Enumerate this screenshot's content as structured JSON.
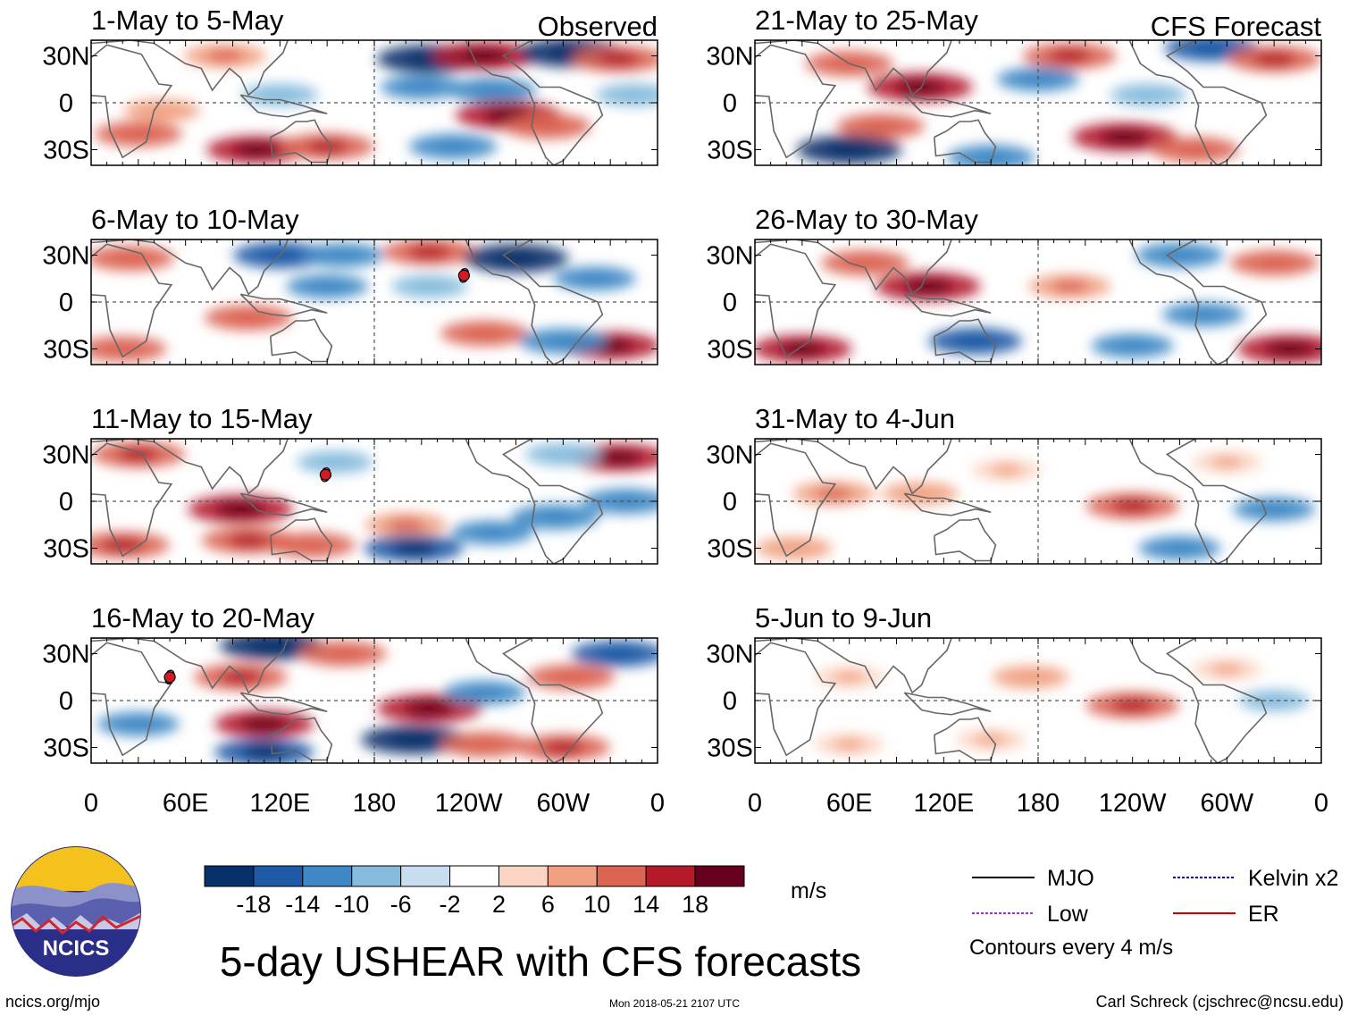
{
  "chart_data": {
    "type": "heatmap",
    "title": "5-day USHEAR with CFS forecasts",
    "units": "m/s",
    "colorbar": {
      "ticks": [
        "-18",
        "-14",
        "-10",
        "-6",
        "-2",
        "2",
        "6",
        "10",
        "14",
        "18"
      ],
      "colors": [
        "#08306b",
        "#1f5aa6",
        "#3f88c5",
        "#86bbdd",
        "#c8def0",
        "#ffffff",
        "#fbd5c3",
        "#f1a182",
        "#db6453",
        "#b31b2b",
        "#67001f"
      ]
    },
    "lat_ticks": [
      "30N",
      "0",
      "30S"
    ],
    "lon_ticks": [
      "0",
      "60E",
      "120E",
      "180",
      "120W",
      "60W",
      "0"
    ],
    "column_tags": {
      "observed": "Observed",
      "forecast": "CFS Forecast"
    },
    "panels": [
      {
        "title": "1-May to 5-May",
        "column": "observed",
        "features": [
          {
            "lon": 30,
            "lat": -20,
            "value": 12
          },
          {
            "lon": 45,
            "lat": -5,
            "value": 8
          },
          {
            "lon": 85,
            "lat": 30,
            "value": 10
          },
          {
            "lon": 105,
            "lat": -30,
            "value": 16
          },
          {
            "lon": 150,
            "lat": -28,
            "value": 14
          },
          {
            "lon": 215,
            "lat": 28,
            "value": -18
          },
          {
            "lon": 250,
            "lat": 30,
            "value": 18
          },
          {
            "lon": 210,
            "lat": 10,
            "value": -10
          },
          {
            "lon": 255,
            "lat": 8,
            "value": -12
          },
          {
            "lon": 265,
            "lat": -8,
            "value": 18
          },
          {
            "lon": 290,
            "lat": -15,
            "value": 12
          },
          {
            "lon": 305,
            "lat": 32,
            "value": -18
          },
          {
            "lon": 335,
            "lat": 28,
            "value": 14
          },
          {
            "lon": 345,
            "lat": 5,
            "value": -8
          },
          {
            "lon": 230,
            "lat": -28,
            "value": -12
          },
          {
            "lon": 120,
            "lat": 5,
            "value": -8
          }
        ]
      },
      {
        "title": "6-May to 10-May",
        "column": "observed",
        "features": [
          {
            "lon": 25,
            "lat": 28,
            "value": 12
          },
          {
            "lon": 100,
            "lat": -10,
            "value": 12
          },
          {
            "lon": 120,
            "lat": 30,
            "value": -14
          },
          {
            "lon": 160,
            "lat": 30,
            "value": -10
          },
          {
            "lon": 215,
            "lat": 32,
            "value": 14
          },
          {
            "lon": 270,
            "lat": 28,
            "value": -18
          },
          {
            "lon": 215,
            "lat": 10,
            "value": -8
          },
          {
            "lon": 250,
            "lat": -20,
            "value": 12
          },
          {
            "lon": 330,
            "lat": -28,
            "value": 16
          },
          {
            "lon": 300,
            "lat": -25,
            "value": -12
          },
          {
            "lon": 20,
            "lat": -30,
            "value": 12
          },
          {
            "lon": 320,
            "lat": 15,
            "value": -10
          },
          {
            "lon": 150,
            "lat": 10,
            "value": -10
          }
        ]
      },
      {
        "title": "11-May to 15-May",
        "column": "observed",
        "features": [
          {
            "lon": 95,
            "lat": -5,
            "value": 18
          },
          {
            "lon": 100,
            "lat": -25,
            "value": 14
          },
          {
            "lon": 140,
            "lat": -28,
            "value": 12
          },
          {
            "lon": 20,
            "lat": -28,
            "value": 14
          },
          {
            "lon": 30,
            "lat": 30,
            "value": 14
          },
          {
            "lon": 155,
            "lat": 25,
            "value": -8
          },
          {
            "lon": 200,
            "lat": -15,
            "value": 10
          },
          {
            "lon": 205,
            "lat": -30,
            "value": -16
          },
          {
            "lon": 255,
            "lat": -20,
            "value": -10
          },
          {
            "lon": 295,
            "lat": -10,
            "value": -12
          },
          {
            "lon": 335,
            "lat": 28,
            "value": 16
          },
          {
            "lon": 340,
            "lat": 0,
            "value": -12
          },
          {
            "lon": 300,
            "lat": 30,
            "value": -8
          }
        ]
      },
      {
        "title": "16-May to 20-May",
        "column": "observed",
        "features": [
          {
            "lon": 95,
            "lat": 15,
            "value": 14
          },
          {
            "lon": 110,
            "lat": -15,
            "value": 16
          },
          {
            "lon": 110,
            "lat": -33,
            "value": -16
          },
          {
            "lon": 115,
            "lat": 35,
            "value": -18
          },
          {
            "lon": 215,
            "lat": -5,
            "value": 18
          },
          {
            "lon": 205,
            "lat": -25,
            "value": -18
          },
          {
            "lon": 250,
            "lat": -28,
            "value": 12
          },
          {
            "lon": 250,
            "lat": 5,
            "value": -10
          },
          {
            "lon": 305,
            "lat": 15,
            "value": 12
          },
          {
            "lon": 335,
            "lat": 30,
            "value": -14
          },
          {
            "lon": 300,
            "lat": -30,
            "value": 14
          },
          {
            "lon": 30,
            "lat": -15,
            "value": -10
          },
          {
            "lon": 160,
            "lat": 30,
            "value": 12
          }
        ]
      },
      {
        "title": "21-May to 25-May",
        "column": "forecast",
        "features": [
          {
            "lon": 105,
            "lat": 10,
            "value": 18
          },
          {
            "lon": 60,
            "lat": 25,
            "value": 12
          },
          {
            "lon": 80,
            "lat": -15,
            "value": 12
          },
          {
            "lon": 60,
            "lat": -30,
            "value": -18
          },
          {
            "lon": 235,
            "lat": -22,
            "value": 18
          },
          {
            "lon": 280,
            "lat": -30,
            "value": 12
          },
          {
            "lon": 200,
            "lat": 30,
            "value": 14
          },
          {
            "lon": 180,
            "lat": 15,
            "value": -10
          },
          {
            "lon": 290,
            "lat": 35,
            "value": -14
          },
          {
            "lon": 330,
            "lat": 28,
            "value": 14
          },
          {
            "lon": 250,
            "lat": 5,
            "value": -8
          },
          {
            "lon": 150,
            "lat": -35,
            "value": -12
          }
        ]
      },
      {
        "title": "26-May to 30-May",
        "column": "forecast",
        "features": [
          {
            "lon": 110,
            "lat": 10,
            "value": 18
          },
          {
            "lon": 70,
            "lat": 25,
            "value": 12
          },
          {
            "lon": 140,
            "lat": -25,
            "value": -14
          },
          {
            "lon": 30,
            "lat": -30,
            "value": 16
          },
          {
            "lon": 340,
            "lat": -30,
            "value": 18
          },
          {
            "lon": 200,
            "lat": 10,
            "value": 10
          },
          {
            "lon": 270,
            "lat": 30,
            "value": -12
          },
          {
            "lon": 285,
            "lat": -8,
            "value": -10
          },
          {
            "lon": 240,
            "lat": -28,
            "value": -10
          },
          {
            "lon": 330,
            "lat": 25,
            "value": 12
          }
        ]
      },
      {
        "title": "31-May to 4-Jun",
        "column": "forecast",
        "features": [
          {
            "lon": 240,
            "lat": -3,
            "value": 14
          },
          {
            "lon": 50,
            "lat": 5,
            "value": 10
          },
          {
            "lon": 105,
            "lat": 5,
            "value": 8
          },
          {
            "lon": 330,
            "lat": -5,
            "value": -10
          },
          {
            "lon": 270,
            "lat": -30,
            "value": -10
          },
          {
            "lon": 25,
            "lat": -30,
            "value": 8
          },
          {
            "lon": 160,
            "lat": 20,
            "value": 6
          },
          {
            "lon": 300,
            "lat": 25,
            "value": 6
          }
        ]
      },
      {
        "title": "5-Jun to 9-Jun",
        "column": "forecast",
        "features": [
          {
            "lon": 240,
            "lat": -3,
            "value": 14
          },
          {
            "lon": 60,
            "lat": 15,
            "value": 6
          },
          {
            "lon": 175,
            "lat": 15,
            "value": 8
          },
          {
            "lon": 150,
            "lat": -25,
            "value": 6
          },
          {
            "lon": 330,
            "lat": 0,
            "value": -6
          },
          {
            "lon": 60,
            "lat": -28,
            "value": 6
          },
          {
            "lon": 300,
            "lat": 20,
            "value": 6
          }
        ]
      }
    ],
    "storm_markers": [
      {
        "panel": 1,
        "lon": 237,
        "lat": 17
      },
      {
        "panel": 2,
        "lon": 149,
        "lat": 17
      },
      {
        "panel": 3,
        "lon": 50,
        "lat": 15
      }
    ]
  },
  "legend": {
    "items": [
      {
        "label": "MJO",
        "color": "#000000",
        "dashed": false
      },
      {
        "label": "Low",
        "color": "#9933cc",
        "dashed": true
      },
      {
        "label": "Kelvin x2",
        "color": "#0000cc",
        "dashed": true
      },
      {
        "label": "ER",
        "color": "#cc0000",
        "dashed": false
      }
    ],
    "contour_note": "Contours every 4 m/s"
  },
  "branding": {
    "logo_text": "NCICS"
  },
  "footer": {
    "url": "ncics.org/mjo",
    "timestamp": "Mon 2018-05-21 2107 UTC",
    "author": "Carl Schreck (cjschrec@ncsu.edu)"
  }
}
